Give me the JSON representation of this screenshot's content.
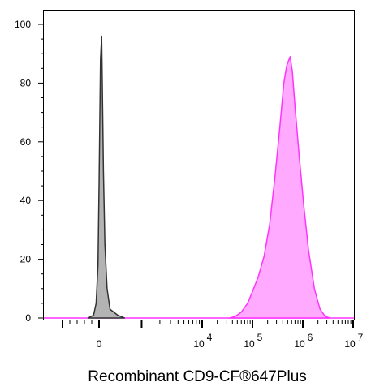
{
  "chart_data": {
    "type": "area",
    "title": "",
    "xlabel": "Recombinant CD9-CF®647Plus",
    "ylabel": "",
    "x_scale": "biexponential",
    "xlim": [
      -1000,
      10000000
    ],
    "ylim": [
      0,
      105
    ],
    "grid": false,
    "legend": "none",
    "y_ticks": [
      {
        "value": 0,
        "label": "0"
      },
      {
        "value": 20,
        "label": "20"
      },
      {
        "value": 40,
        "label": "40"
      },
      {
        "value": 60,
        "label": "60"
      },
      {
        "value": 80,
        "label": "80"
      },
      {
        "value": 100,
        "label": "100"
      }
    ],
    "x_ticks": [
      {
        "value": 0,
        "base": "0",
        "exp": ""
      },
      {
        "value": 10000,
        "base": "10",
        "exp": "4"
      },
      {
        "value": 100000,
        "base": "10",
        "exp": "5"
      },
      {
        "value": 1000000,
        "base": "10",
        "exp": "6"
      },
      {
        "value": 10000000,
        "base": "10",
        "exp": "7"
      }
    ],
    "series": [
      {
        "fill": "#b3b3b3",
        "stroke": "#333333",
        "points": [
          [
            -300,
            0
          ],
          [
            -150,
            1
          ],
          [
            -80,
            5
          ],
          [
            -30,
            18
          ],
          [
            0,
            45
          ],
          [
            40,
            88
          ],
          [
            70,
            96
          ],
          [
            90,
            80
          ],
          [
            120,
            50
          ],
          [
            160,
            25
          ],
          [
            220,
            10
          ],
          [
            300,
            3
          ],
          [
            400,
            1
          ],
          [
            520,
            0
          ]
        ]
      },
      {
        "fill": "#ffaaff",
        "stroke": "#ff33ff",
        "points": [
          [
            35000,
            0
          ],
          [
            45000,
            0.5
          ],
          [
            60000,
            2
          ],
          [
            80000,
            5
          ],
          [
            100000,
            9
          ],
          [
            130000,
            14
          ],
          [
            170000,
            21
          ],
          [
            220000,
            32
          ],
          [
            280000,
            48
          ],
          [
            350000,
            65
          ],
          [
            420000,
            80
          ],
          [
            480000,
            86
          ],
          [
            560000,
            89
          ],
          [
            620000,
            84
          ],
          [
            700000,
            72
          ],
          [
            850000,
            55
          ],
          [
            1050000,
            38
          ],
          [
            1300000,
            23
          ],
          [
            1700000,
            10
          ],
          [
            2200000,
            3
          ],
          [
            2800000,
            0.5
          ],
          [
            3500000,
            0
          ]
        ]
      }
    ]
  }
}
